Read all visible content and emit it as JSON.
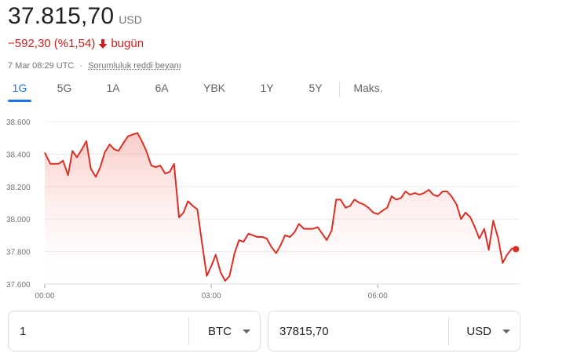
{
  "quote": {
    "price": "37.815,70",
    "currency": "USD",
    "change": "−592,30 (%1,54)",
    "change_suffix": "bugün",
    "timestamp": "7 Mar 08:29 UTC",
    "separator": "·",
    "disclaimer": "Sorumluluk reddi beyanı"
  },
  "tabs": [
    {
      "label": "1G",
      "active": true
    },
    {
      "label": "5G"
    },
    {
      "label": "1A"
    },
    {
      "label": "6A"
    },
    {
      "label": "YBK"
    },
    {
      "label": "1Y"
    },
    {
      "label": "5Y"
    },
    {
      "label": "Maks."
    }
  ],
  "colors": {
    "down": "#d93025",
    "active": "#1a73e8"
  },
  "chart_data": {
    "type": "area",
    "y_ticks": [
      "38.600",
      "38.400",
      "38.200",
      "38.000",
      "37.800",
      "37.600"
    ],
    "x_ticks": [
      "00:00",
      "03:00",
      "06:00"
    ],
    "ylim": [
      37600,
      38600
    ],
    "x_unit": "hours since 00:00",
    "series": [
      {
        "x": [
          0,
          0.1,
          0.25,
          0.33,
          0.42,
          0.5,
          0.58,
          0.67,
          0.75,
          0.83,
          0.92,
          1.0,
          1.08,
          1.17,
          1.25,
          1.33,
          1.42,
          1.5,
          1.58,
          1.67,
          1.75,
          1.83,
          1.92,
          2.0,
          2.08,
          2.17,
          2.25,
          2.33,
          2.42,
          2.5,
          2.58,
          2.67,
          2.75,
          2.83,
          2.92,
          3.0,
          3.08,
          3.17,
          3.25,
          3.33,
          3.42,
          3.5,
          3.58,
          3.67,
          3.75,
          3.83,
          3.92,
          4.0,
          4.08,
          4.17,
          4.25,
          4.33,
          4.42,
          4.5,
          4.58,
          4.67,
          4.75,
          4.83,
          4.92,
          5.0,
          5.08,
          5.17,
          5.25,
          5.33,
          5.42,
          5.5,
          5.58,
          5.67,
          5.75,
          5.83,
          5.92,
          6.0,
          6.08,
          6.17,
          6.25,
          6.33,
          6.42,
          6.5,
          6.58,
          6.67,
          6.75,
          6.83,
          6.92,
          7.0,
          7.08,
          7.17,
          7.25,
          7.33,
          7.42,
          7.5,
          7.58,
          7.67,
          7.75,
          7.83,
          7.92,
          8.0,
          8.08,
          8.17,
          8.25,
          8.33,
          8.42,
          8.49
        ],
        "y": [
          38410,
          38340,
          38340,
          38360,
          38270,
          38420,
          38380,
          38430,
          38480,
          38310,
          38260,
          38320,
          38410,
          38460,
          38430,
          38420,
          38470,
          38510,
          38520,
          38530,
          38480,
          38420,
          38330,
          38320,
          38330,
          38280,
          38290,
          38340,
          38010,
          38040,
          38110,
          38080,
          38060,
          37860,
          37650,
          37710,
          37780,
          37670,
          37620,
          37650,
          37790,
          37870,
          37860,
          37910,
          37900,
          37890,
          37890,
          37880,
          37830,
          37790,
          37840,
          37900,
          37890,
          37920,
          37970,
          37940,
          37940,
          37940,
          37950,
          37910,
          37870,
          37930,
          38120,
          38120,
          38070,
          38080,
          38120,
          38100,
          38090,
          38070,
          38040,
          38030,
          38050,
          38070,
          38140,
          38120,
          38130,
          38170,
          38150,
          38160,
          38150,
          38160,
          38180,
          38150,
          38140,
          38170,
          38170,
          38140,
          38090,
          38000,
          38040,
          38010,
          37950,
          37880,
          37940,
          37810,
          37990,
          37880,
          37730,
          37780,
          37820,
          37815
        ]
      }
    ]
  },
  "converter": {
    "amount": "1",
    "from_currency": "BTC",
    "converted": "37815,70",
    "to_currency": "USD"
  }
}
